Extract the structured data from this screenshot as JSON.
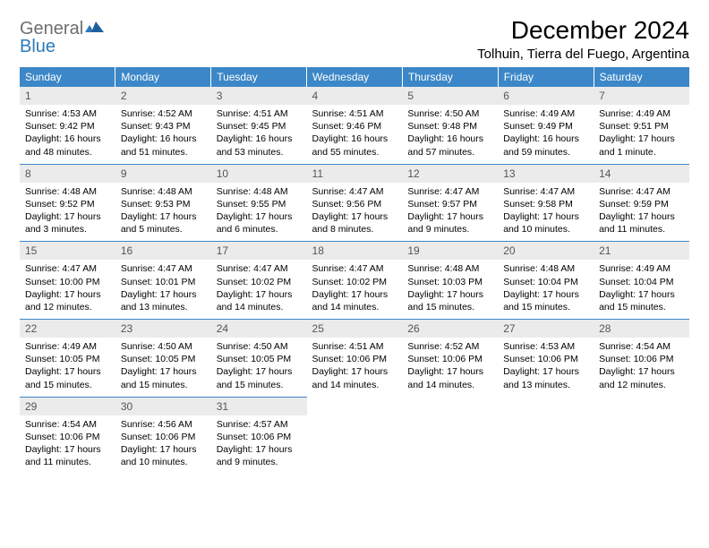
{
  "brand": {
    "part1": "General",
    "part2": "Blue"
  },
  "colors": {
    "header_bg": "#3c87c7",
    "header_fg": "#ffffff",
    "daynum_bg": "#ebebeb",
    "daynum_fg": "#555555",
    "rule": "#3c87c7",
    "logo_gray": "#6d6e71",
    "logo_blue": "#2a7ab9"
  },
  "title": "December 2024",
  "location": "Tolhuin, Tierra del Fuego, Argentina",
  "weekdays": [
    "Sunday",
    "Monday",
    "Tuesday",
    "Wednesday",
    "Thursday",
    "Friday",
    "Saturday"
  ],
  "weeks": [
    [
      {
        "n": "1",
        "l1": "Sunrise: 4:53 AM",
        "l2": "Sunset: 9:42 PM",
        "l3": "Daylight: 16 hours",
        "l4": "and 48 minutes."
      },
      {
        "n": "2",
        "l1": "Sunrise: 4:52 AM",
        "l2": "Sunset: 9:43 PM",
        "l3": "Daylight: 16 hours",
        "l4": "and 51 minutes."
      },
      {
        "n": "3",
        "l1": "Sunrise: 4:51 AM",
        "l2": "Sunset: 9:45 PM",
        "l3": "Daylight: 16 hours",
        "l4": "and 53 minutes."
      },
      {
        "n": "4",
        "l1": "Sunrise: 4:51 AM",
        "l2": "Sunset: 9:46 PM",
        "l3": "Daylight: 16 hours",
        "l4": "and 55 minutes."
      },
      {
        "n": "5",
        "l1": "Sunrise: 4:50 AM",
        "l2": "Sunset: 9:48 PM",
        "l3": "Daylight: 16 hours",
        "l4": "and 57 minutes."
      },
      {
        "n": "6",
        "l1": "Sunrise: 4:49 AM",
        "l2": "Sunset: 9:49 PM",
        "l3": "Daylight: 16 hours",
        "l4": "and 59 minutes."
      },
      {
        "n": "7",
        "l1": "Sunrise: 4:49 AM",
        "l2": "Sunset: 9:51 PM",
        "l3": "Daylight: 17 hours",
        "l4": "and 1 minute."
      }
    ],
    [
      {
        "n": "8",
        "l1": "Sunrise: 4:48 AM",
        "l2": "Sunset: 9:52 PM",
        "l3": "Daylight: 17 hours",
        "l4": "and 3 minutes."
      },
      {
        "n": "9",
        "l1": "Sunrise: 4:48 AM",
        "l2": "Sunset: 9:53 PM",
        "l3": "Daylight: 17 hours",
        "l4": "and 5 minutes."
      },
      {
        "n": "10",
        "l1": "Sunrise: 4:48 AM",
        "l2": "Sunset: 9:55 PM",
        "l3": "Daylight: 17 hours",
        "l4": "and 6 minutes."
      },
      {
        "n": "11",
        "l1": "Sunrise: 4:47 AM",
        "l2": "Sunset: 9:56 PM",
        "l3": "Daylight: 17 hours",
        "l4": "and 8 minutes."
      },
      {
        "n": "12",
        "l1": "Sunrise: 4:47 AM",
        "l2": "Sunset: 9:57 PM",
        "l3": "Daylight: 17 hours",
        "l4": "and 9 minutes."
      },
      {
        "n": "13",
        "l1": "Sunrise: 4:47 AM",
        "l2": "Sunset: 9:58 PM",
        "l3": "Daylight: 17 hours",
        "l4": "and 10 minutes."
      },
      {
        "n": "14",
        "l1": "Sunrise: 4:47 AM",
        "l2": "Sunset: 9:59 PM",
        "l3": "Daylight: 17 hours",
        "l4": "and 11 minutes."
      }
    ],
    [
      {
        "n": "15",
        "l1": "Sunrise: 4:47 AM",
        "l2": "Sunset: 10:00 PM",
        "l3": "Daylight: 17 hours",
        "l4": "and 12 minutes."
      },
      {
        "n": "16",
        "l1": "Sunrise: 4:47 AM",
        "l2": "Sunset: 10:01 PM",
        "l3": "Daylight: 17 hours",
        "l4": "and 13 minutes."
      },
      {
        "n": "17",
        "l1": "Sunrise: 4:47 AM",
        "l2": "Sunset: 10:02 PM",
        "l3": "Daylight: 17 hours",
        "l4": "and 14 minutes."
      },
      {
        "n": "18",
        "l1": "Sunrise: 4:47 AM",
        "l2": "Sunset: 10:02 PM",
        "l3": "Daylight: 17 hours",
        "l4": "and 14 minutes."
      },
      {
        "n": "19",
        "l1": "Sunrise: 4:48 AM",
        "l2": "Sunset: 10:03 PM",
        "l3": "Daylight: 17 hours",
        "l4": "and 15 minutes."
      },
      {
        "n": "20",
        "l1": "Sunrise: 4:48 AM",
        "l2": "Sunset: 10:04 PM",
        "l3": "Daylight: 17 hours",
        "l4": "and 15 minutes."
      },
      {
        "n": "21",
        "l1": "Sunrise: 4:49 AM",
        "l2": "Sunset: 10:04 PM",
        "l3": "Daylight: 17 hours",
        "l4": "and 15 minutes."
      }
    ],
    [
      {
        "n": "22",
        "l1": "Sunrise: 4:49 AM",
        "l2": "Sunset: 10:05 PM",
        "l3": "Daylight: 17 hours",
        "l4": "and 15 minutes."
      },
      {
        "n": "23",
        "l1": "Sunrise: 4:50 AM",
        "l2": "Sunset: 10:05 PM",
        "l3": "Daylight: 17 hours",
        "l4": "and 15 minutes."
      },
      {
        "n": "24",
        "l1": "Sunrise: 4:50 AM",
        "l2": "Sunset: 10:05 PM",
        "l3": "Daylight: 17 hours",
        "l4": "and 15 minutes."
      },
      {
        "n": "25",
        "l1": "Sunrise: 4:51 AM",
        "l2": "Sunset: 10:06 PM",
        "l3": "Daylight: 17 hours",
        "l4": "and 14 minutes."
      },
      {
        "n": "26",
        "l1": "Sunrise: 4:52 AM",
        "l2": "Sunset: 10:06 PM",
        "l3": "Daylight: 17 hours",
        "l4": "and 14 minutes."
      },
      {
        "n": "27",
        "l1": "Sunrise: 4:53 AM",
        "l2": "Sunset: 10:06 PM",
        "l3": "Daylight: 17 hours",
        "l4": "and 13 minutes."
      },
      {
        "n": "28",
        "l1": "Sunrise: 4:54 AM",
        "l2": "Sunset: 10:06 PM",
        "l3": "Daylight: 17 hours",
        "l4": "and 12 minutes."
      }
    ],
    [
      {
        "n": "29",
        "l1": "Sunrise: 4:54 AM",
        "l2": "Sunset: 10:06 PM",
        "l3": "Daylight: 17 hours",
        "l4": "and 11 minutes."
      },
      {
        "n": "30",
        "l1": "Sunrise: 4:56 AM",
        "l2": "Sunset: 10:06 PM",
        "l3": "Daylight: 17 hours",
        "l4": "and 10 minutes."
      },
      {
        "n": "31",
        "l1": "Sunrise: 4:57 AM",
        "l2": "Sunset: 10:06 PM",
        "l3": "Daylight: 17 hours",
        "l4": "and 9 minutes."
      },
      null,
      null,
      null,
      null
    ]
  ]
}
